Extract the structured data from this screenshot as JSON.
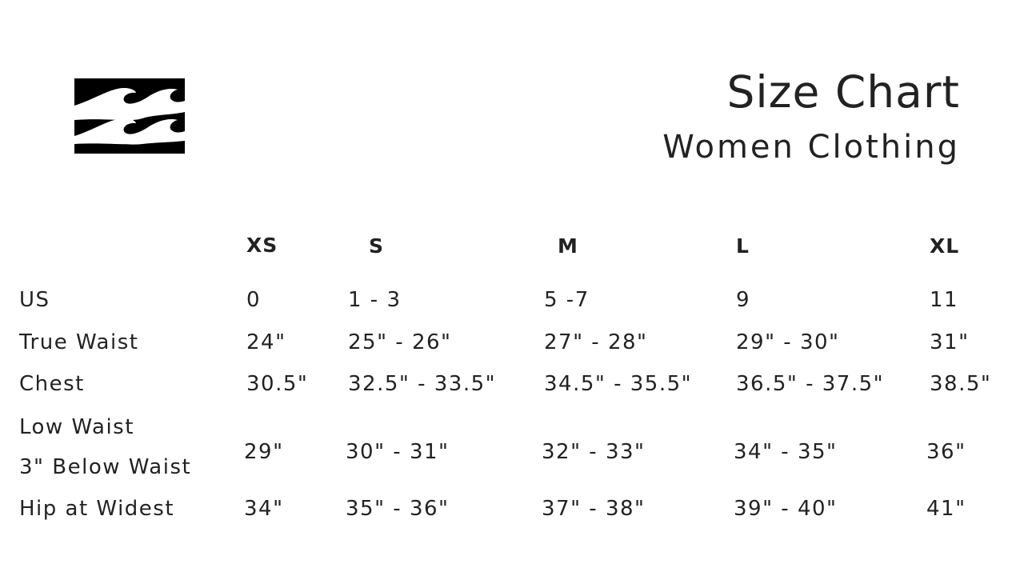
{
  "logo": {
    "name": "wave-logo"
  },
  "header": {
    "title": "Size Chart",
    "subtitle": "Women Clothing"
  },
  "table": {
    "columns": [
      "XS",
      "S",
      "M",
      "L",
      "XL"
    ],
    "rows": [
      {
        "label": "US",
        "values": [
          "0",
          "1 - 3",
          "5 -7",
          "9",
          "11"
        ]
      },
      {
        "label": "True Waist",
        "values": [
          "24\"",
          "25\" - 26\"",
          "27\" - 28\"",
          "29\" - 30\"",
          "31\""
        ]
      },
      {
        "label": "Chest",
        "values": [
          "30.5\"",
          "32.5\" - 33.5\"",
          "34.5\" - 35.5\"",
          "36.5\" - 37.5\"",
          "38.5\""
        ]
      },
      {
        "label": "Low Waist",
        "label2": "3\" Below Waist",
        "values": [
          "29\"",
          "30\" - 31\"",
          "32\" - 33\"",
          "34\" - 35\"",
          "36\""
        ]
      },
      {
        "label": "Hip at Widest",
        "values": [
          "34\"",
          "35\" - 36\"",
          "37\" - 38\"",
          "39\" - 40\"",
          "41\""
        ]
      }
    ]
  }
}
